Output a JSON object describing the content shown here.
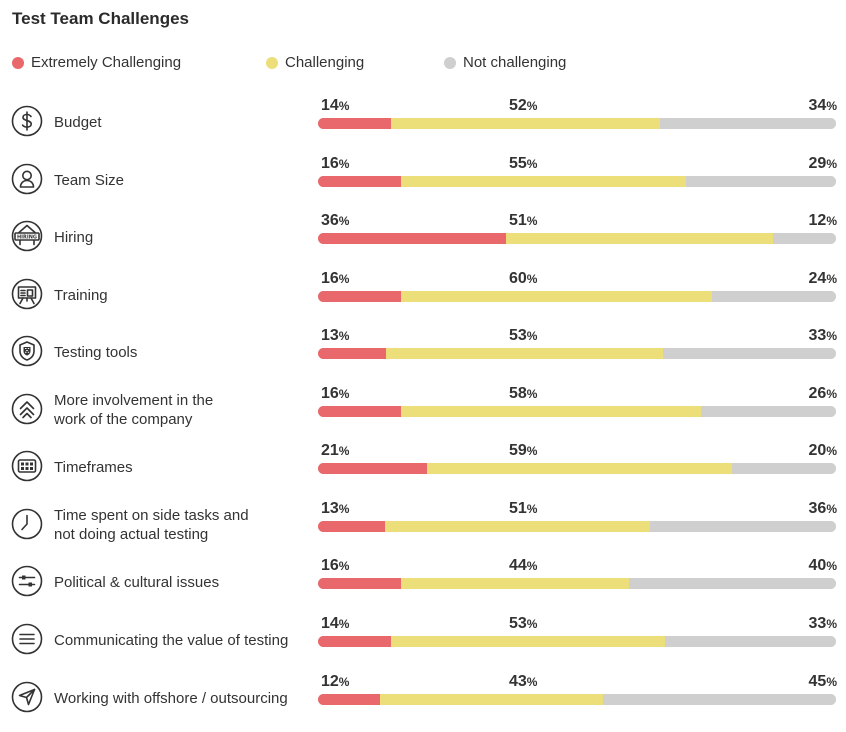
{
  "chart_data": {
    "type": "bar",
    "stacked": true,
    "orientation": "horizontal",
    "title": "Test Team Challenges",
    "value_unit": "%",
    "legend_position": "top",
    "series": [
      {
        "name": "Extremely Challenging",
        "color": "#e8686b"
      },
      {
        "name": "Challenging",
        "color": "#ecdf7a"
      },
      {
        "name": "Not challenging",
        "color": "#cfcfcf"
      }
    ],
    "rows": [
      {
        "label": [
          "Budget"
        ],
        "icon": "dollar-icon",
        "values": [
          14,
          52,
          34
        ]
      },
      {
        "label": [
          "Team Size"
        ],
        "icon": "person-icon",
        "values": [
          16,
          55,
          29
        ]
      },
      {
        "label": [
          "Hiring"
        ],
        "icon": "hiring-icon",
        "icon_text": "HIRING",
        "values": [
          36,
          51,
          12
        ]
      },
      {
        "label": [
          "Training"
        ],
        "icon": "presentation-board-icon",
        "values": [
          16,
          60,
          24
        ]
      },
      {
        "label": [
          "Testing tools"
        ],
        "icon": "shield-icon",
        "values": [
          13,
          53,
          33
        ]
      },
      {
        "label": [
          "More involvement in the",
          "work of the company"
        ],
        "icon": "double-chevron-up-icon",
        "values": [
          16,
          58,
          26
        ]
      },
      {
        "label": [
          "Timeframes"
        ],
        "icon": "grid-icon",
        "values": [
          21,
          59,
          20
        ]
      },
      {
        "label": [
          "Time spent on side tasks and",
          "not doing actual testing"
        ],
        "icon": "clock-icon",
        "values": [
          13,
          51,
          36
        ]
      },
      {
        "label": [
          "Political & cultural issues"
        ],
        "icon": "sliders-icon",
        "values": [
          16,
          44,
          40
        ]
      },
      {
        "label": [
          "Communicating the value of testing"
        ],
        "icon": "menu-lines-icon",
        "values": [
          14,
          53,
          33
        ]
      },
      {
        "label": [
          "Working with offshore / outsourcing"
        ],
        "icon": "send-arrow-icon",
        "values": [
          12,
          43,
          45
        ]
      }
    ]
  }
}
